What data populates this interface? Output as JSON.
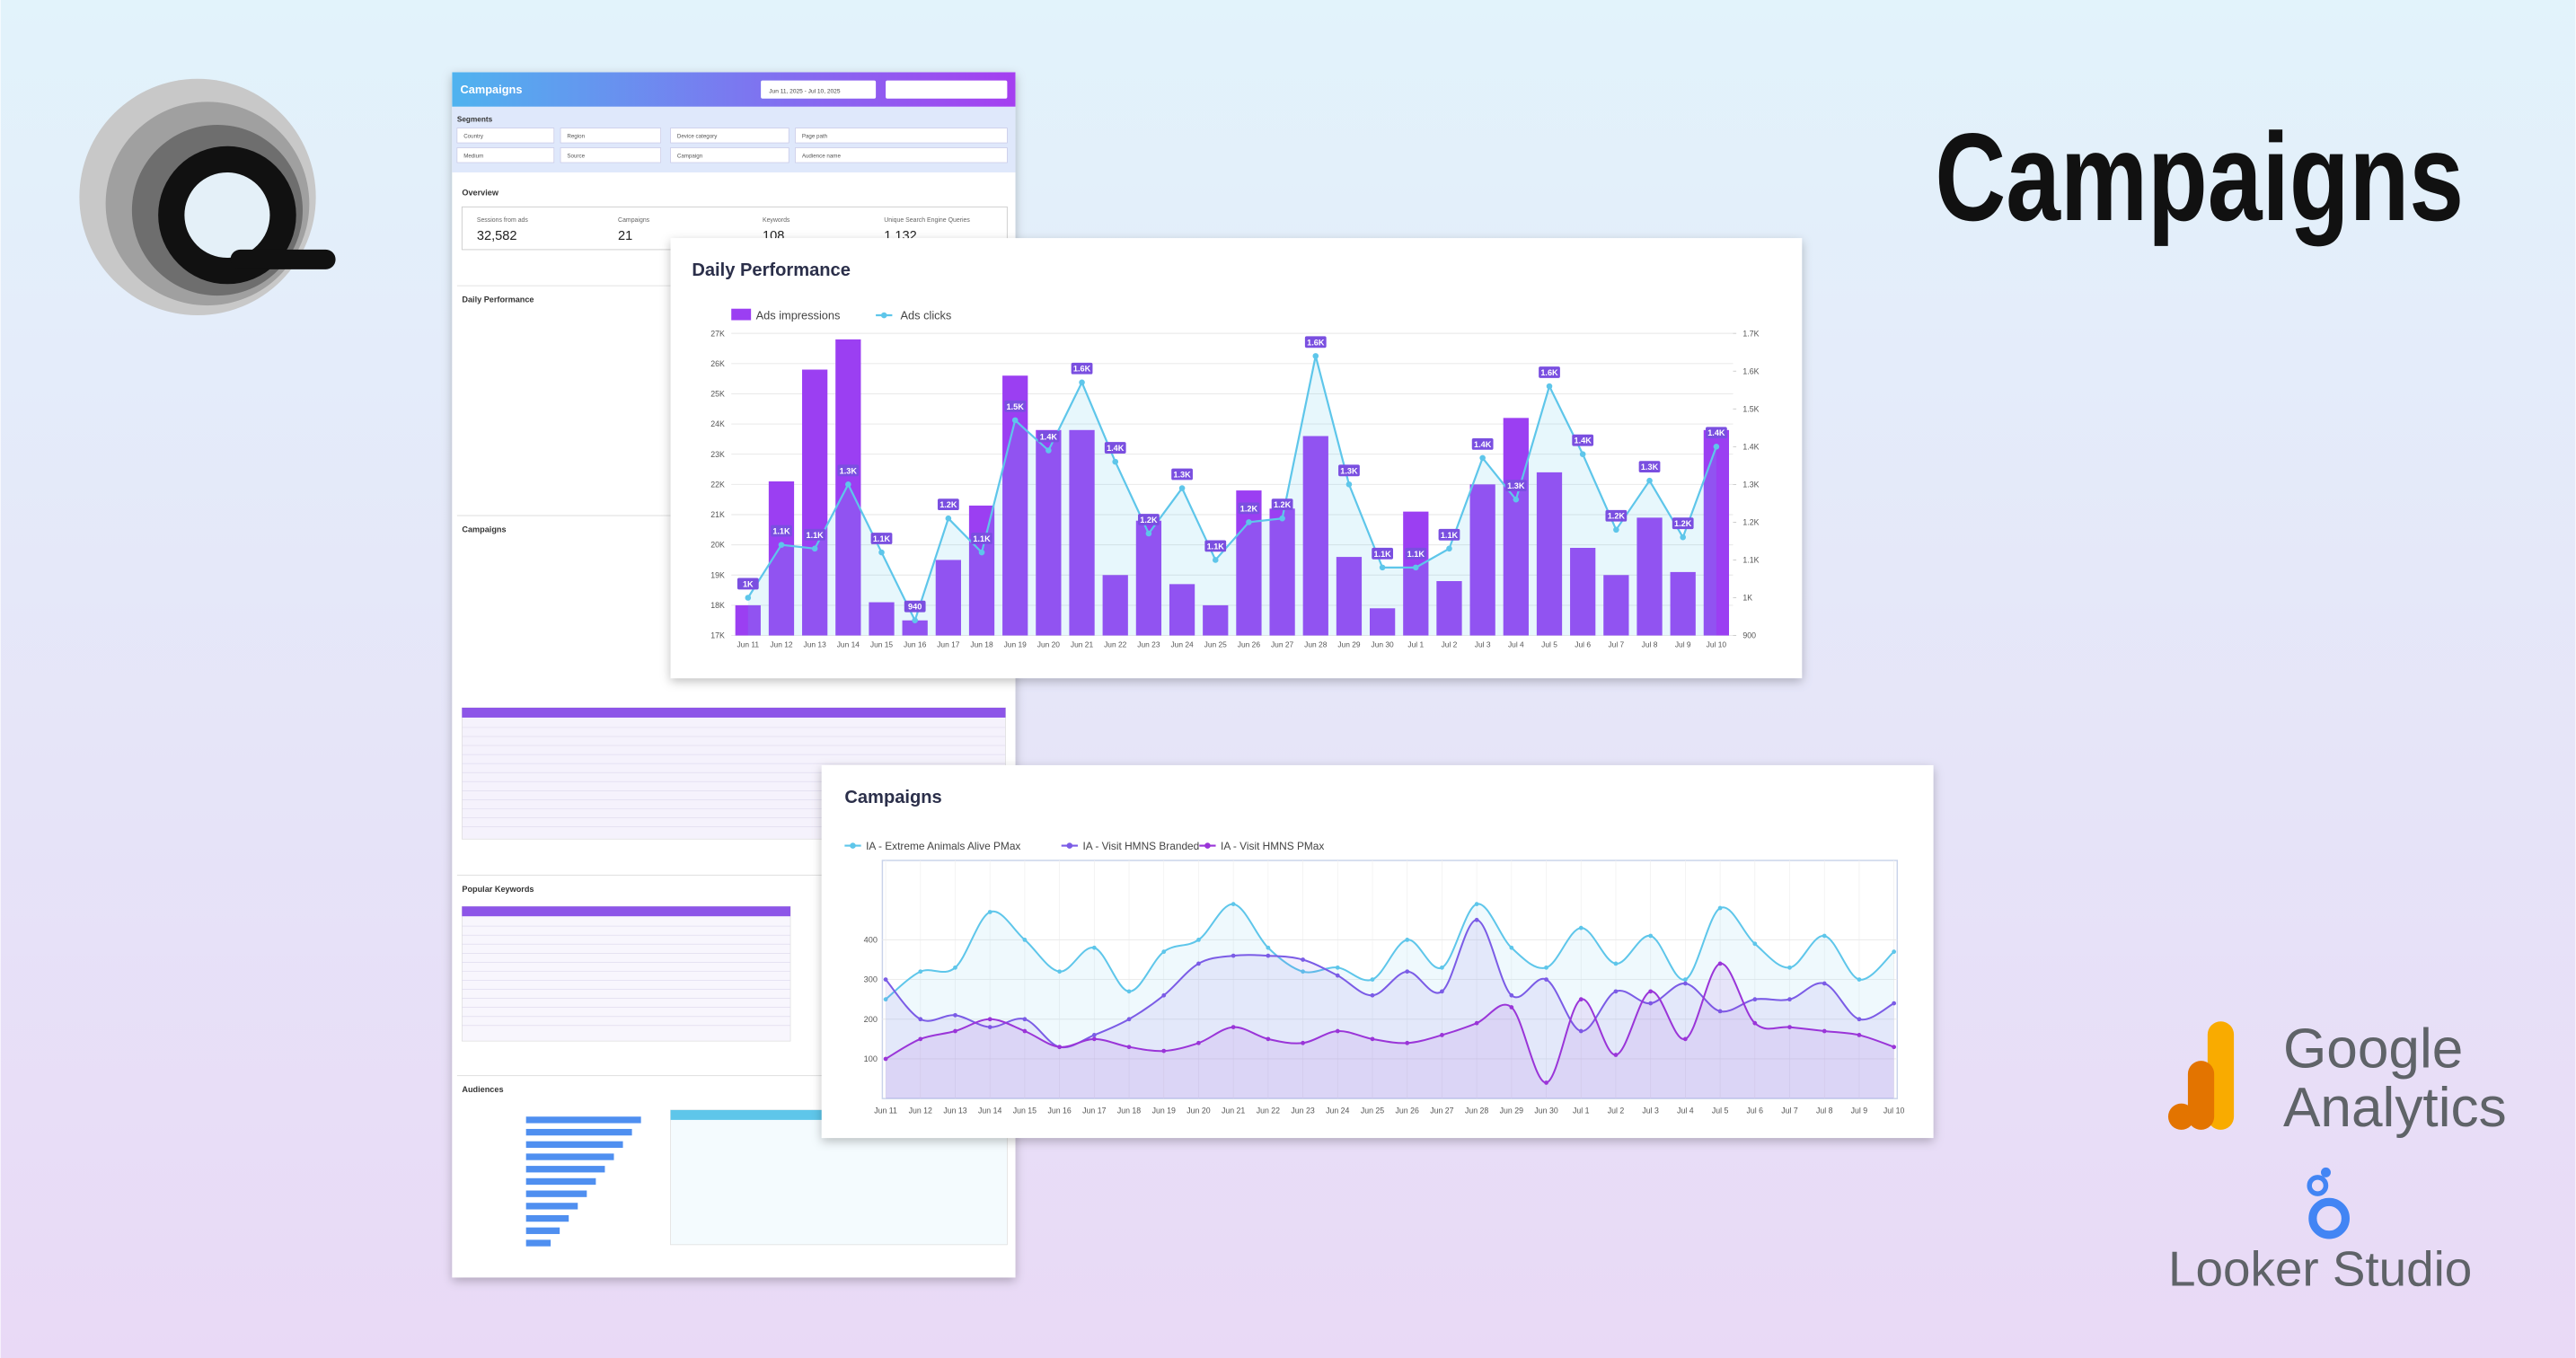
{
  "title": "Campaigns",
  "logos": {
    "ga_top": "Google",
    "ga_bottom": "Analytics",
    "looker": "Looker Studio"
  },
  "dashboard": {
    "title": "Campaigns",
    "date_range": "Jun 11, 2025 - Jul 10, 2025",
    "segments": "Segments",
    "filters": [
      "Country",
      "Region",
      "Device category",
      "Page path",
      "Medium",
      "Source",
      "Campaign",
      "Audience name"
    ],
    "overview": "Overview",
    "metrics": [
      {
        "label": "Sessions from ads",
        "value": "32,582"
      },
      {
        "label": "Campaigns",
        "value": "21"
      },
      {
        "label": "Keywords",
        "value": "108"
      },
      {
        "label": "Unique Search Engine Queries",
        "value": "1,132"
      }
    ],
    "sections": [
      "Daily Performance",
      "Campaigns",
      "Popular Keywords",
      "Audiences"
    ]
  },
  "chart_data": [
    {
      "type": "bar",
      "title": "Daily Performance",
      "categories": [
        "Jun 11",
        "Jun 12",
        "Jun 13",
        "Jun 14",
        "Jun 15",
        "Jun 16",
        "Jun 17",
        "Jun 18",
        "Jun 19",
        "Jun 20",
        "Jun 21",
        "Jun 22",
        "Jun 23",
        "Jun 24",
        "Jun 25",
        "Jun 26",
        "Jun 27",
        "Jun 28",
        "Jun 29",
        "Jun 30",
        "Jul 1",
        "Jul 2",
        "Jul 3",
        "Jul 4",
        "Jul 5",
        "Jul 6",
        "Jul 7",
        "Jul 8",
        "Jul 9",
        "Jul 10"
      ],
      "series": [
        {
          "name": "Ads impressions",
          "color": "#9b3ff2",
          "values": [
            18000,
            22100,
            25800,
            26800,
            18100,
            17500,
            19500,
            21300,
            25600,
            23800,
            23800,
            19000,
            20800,
            18700,
            18000,
            21800,
            21200,
            23600,
            19600,
            17900,
            21100,
            18800,
            22000,
            24200,
            22400,
            19900,
            19000,
            20900,
            19100,
            23800
          ]
        },
        {
          "name": "Ads clicks",
          "color": "#5ec6ea",
          "type": "line",
          "axis": "y2",
          "values": [
            1000,
            1140,
            1130,
            1300,
            1120,
            940,
            1210,
            1120,
            1470,
            1390,
            1570,
            1360,
            1170,
            1290,
            1100,
            1200,
            1210,
            1640,
            1300,
            1080,
            1080,
            1130,
            1370,
            1260,
            1560,
            1380,
            1180,
            1310,
            1160,
            1400
          ],
          "value_labels": [
            "1K",
            "1.1K",
            "1.1K",
            "1.3K",
            "1.1K",
            "940",
            "1.2K",
            "1.1K",
            "1.5K",
            "1.4K",
            "1.6K",
            "1.4K",
            "1.2K",
            "1.3K",
            "1.1K",
            "1.2K",
            "1.2K",
            "1.6K",
            "1.3K",
            "1.1K",
            "1.1K",
            "1.1K",
            "1.4K",
            "1.3K",
            "1.6K",
            "1.4K",
            "1.2K",
            "1.3K",
            "1.2K",
            "1.4K"
          ]
        }
      ],
      "ylim": [
        17000,
        27000
      ],
      "yticks": [
        {
          "value": 17000,
          "label": "17K"
        },
        {
          "value": 18000,
          "label": "18K"
        },
        {
          "value": 19000,
          "label": "19K"
        },
        {
          "value": 20000,
          "label": "20K"
        },
        {
          "value": 21000,
          "label": "21K"
        },
        {
          "value": 22000,
          "label": "22K"
        },
        {
          "value": 23000,
          "label": "23K"
        },
        {
          "value": 24000,
          "label": "24K"
        },
        {
          "value": 25000,
          "label": "25K"
        },
        {
          "value": 26000,
          "label": "26K"
        },
        {
          "value": 27000,
          "label": "27K"
        }
      ],
      "y2lim": [
        900,
        1700
      ],
      "y2ticks": [
        900,
        {
          "value": 1000,
          "label": "1K"
        },
        {
          "value": 1100,
          "label": "1.1K"
        },
        {
          "value": 1200,
          "label": "1.2K"
        },
        {
          "value": 1300,
          "label": "1.3K"
        },
        {
          "value": 1400,
          "label": "1.4K"
        },
        {
          "value": 1500,
          "label": "1.5K"
        },
        {
          "value": 1600,
          "label": "1.6K"
        },
        {
          "value": 1700,
          "label": "1.7K"
        }
      ],
      "grid": true,
      "legend": "top-left"
    },
    {
      "type": "line",
      "title": "Campaigns",
      "categories": [
        "Jun 11",
        "Jun 12",
        "Jun 13",
        "Jun 14",
        "Jun 15",
        "Jun 16",
        "Jun 17",
        "Jun 18",
        "Jun 19",
        "Jun 20",
        "Jun 21",
        "Jun 22",
        "Jun 23",
        "Jun 24",
        "Jun 25",
        "Jun 26",
        "Jun 27",
        "Jun 28",
        "Jun 29",
        "Jun 30",
        "Jul 1",
        "Jul 2",
        "Jul 3",
        "Jul 4",
        "Jul 5",
        "Jul 6",
        "Jul 7",
        "Jul 8",
        "Jul 9",
        "Jul 10"
      ],
      "series": [
        {
          "name": "IA - Extreme Animals Alive PMax",
          "color": "#5ec6ea",
          "values": [
            250,
            320,
            330,
            470,
            400,
            320,
            380,
            270,
            370,
            400,
            490,
            380,
            320,
            330,
            300,
            400,
            330,
            490,
            380,
            330,
            430,
            340,
            410,
            300,
            480,
            390,
            330,
            410,
            300,
            370
          ]
        },
        {
          "name": "IA - Visit HMNS Branded",
          "color": "#7b5ce6",
          "values": [
            300,
            200,
            210,
            180,
            200,
            130,
            160,
            200,
            260,
            340,
            360,
            360,
            350,
            310,
            260,
            320,
            270,
            450,
            260,
            300,
            170,
            270,
            240,
            290,
            220,
            250,
            250,
            290,
            200,
            240
          ]
        },
        {
          "name": "IA - Visit HMNS PMax",
          "color": "#9a35d8",
          "values": [
            100,
            150,
            170,
            200,
            170,
            130,
            150,
            130,
            120,
            140,
            180,
            150,
            140,
            170,
            150,
            140,
            160,
            190,
            230,
            40,
            250,
            110,
            270,
            150,
            340,
            190,
            180,
            170,
            160,
            130
          ]
        }
      ],
      "ylim": [
        0,
        600
      ],
      "yticks": [
        100,
        200,
        300,
        400
      ],
      "grid": true,
      "legend": "top-left"
    }
  ]
}
